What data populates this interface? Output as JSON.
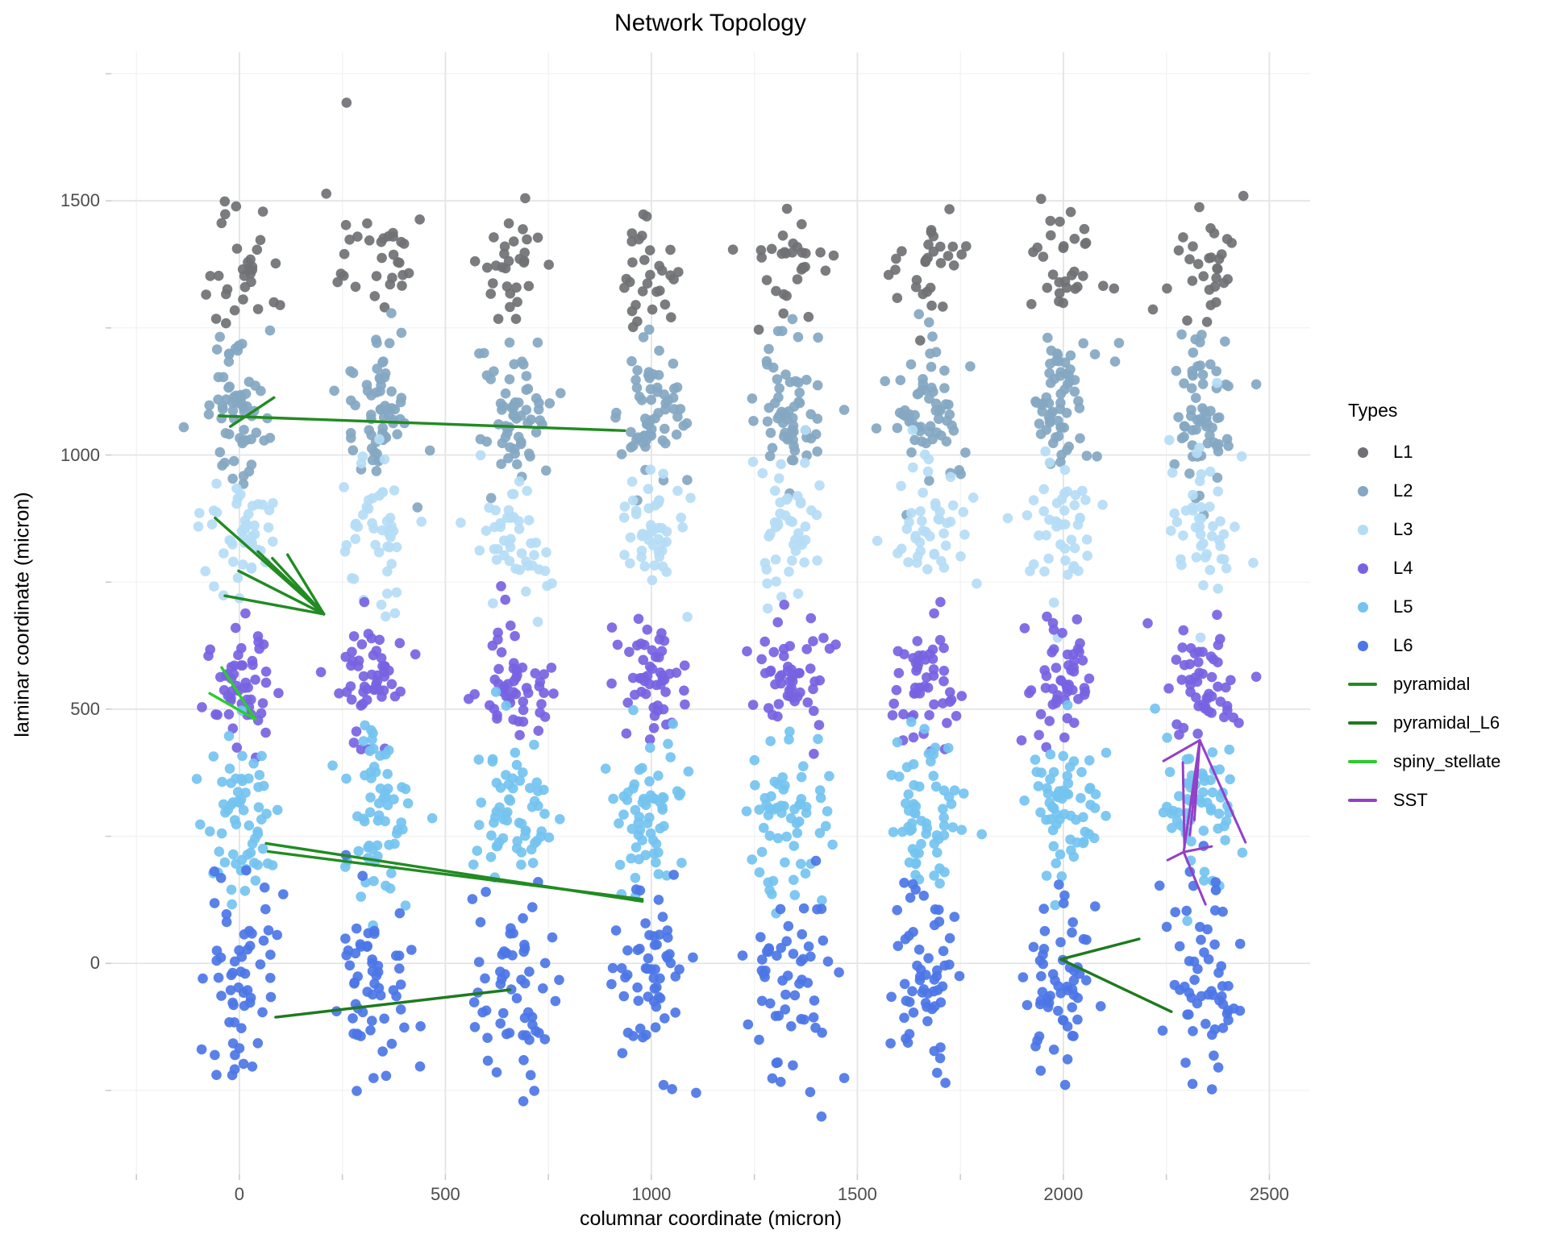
{
  "chart_data": {
    "type": "scatter",
    "title": "Network Topology",
    "xlabel": "columnar coordinate (micron)",
    "ylabel": "laminar coordinate (micron)",
    "xlim": [
      -311,
      2599
    ],
    "ylim": [
      -415,
      1792
    ],
    "grid": "on",
    "x_major_ticks": [
      0,
      500,
      1000,
      1500,
      2000,
      2500
    ],
    "y_major_ticks": [
      0,
      500,
      1000,
      1500
    ],
    "x_minor_ticks": [
      -250,
      250,
      750,
      1250,
      1750,
      2250
    ],
    "y_minor_ticks": [
      -250,
      250,
      750,
      1250,
      1750
    ],
    "column_centers": [
      0,
      333,
      667,
      1000,
      1333,
      1667,
      2000,
      2333
    ],
    "layers": [
      {
        "name": "L1",
        "color": "#6F7174",
        "y_mean": 1372,
        "y_sd": 62,
        "x_sd": 45,
        "n_per_column": 30
      },
      {
        "name": "L2",
        "color": "#84A7C2",
        "y_mean": 1098,
        "y_sd": 72,
        "x_sd": 45,
        "n_per_column": 62
      },
      {
        "name": "L3",
        "color": "#B5DCF5",
        "y_mean": 845,
        "y_sd": 68,
        "x_sd": 45,
        "n_per_column": 46
      },
      {
        "name": "L4",
        "color": "#7763E2",
        "y_mean": 556,
        "y_sd": 62,
        "x_sd": 45,
        "n_per_column": 52
      },
      {
        "name": "L5",
        "color": "#74C3F0",
        "y_mean": 300,
        "y_sd": 78,
        "x_sd": 45,
        "n_per_column": 62
      },
      {
        "name": "L6",
        "color": "#4C76E6",
        "y_mean": -40,
        "y_sd": 95,
        "x_sd": 48,
        "n_per_column": 58
      }
    ],
    "outlier_points": [
      {
        "layer": "L1",
        "x": 260,
        "y": 1693
      },
      {
        "layer": "L1",
        "x": 211,
        "y": 1514
      },
      {
        "layer": "L1",
        "x": -8,
        "y": 1489
      },
      {
        "layer": "L3",
        "x": 2373,
        "y": 1142
      }
    ],
    "edges": [
      {
        "name": "pyramidal",
        "color": "#228B22",
        "width": 3.4,
        "segments": [
          [
            -49,
            1077,
            935,
            1048
          ],
          [
            84,
            1113,
            -22,
            1056
          ],
          [
            205,
            687,
            -59,
            876
          ],
          [
            205,
            687,
            -2,
            772
          ],
          [
            205,
            687,
            -35,
            723
          ],
          [
            205,
            687,
            45,
            810
          ],
          [
            205,
            687,
            80,
            797
          ],
          [
            205,
            687,
            117,
            804
          ],
          [
            65,
            236,
            978,
            122
          ],
          [
            70,
            220,
            978,
            126
          ]
        ]
      },
      {
        "name": "pyramidal_L6",
        "color": "#1E7A1E",
        "width": 3.4,
        "segments": [
          [
            88,
            -106,
            657,
            -52
          ],
          [
            1994,
            8,
            2184,
            48
          ],
          [
            1994,
            8,
            2262,
            -95
          ]
        ]
      },
      {
        "name": "spiny_stellate",
        "color": "#2DCB2D",
        "width": 3.4,
        "segments": [
          [
            39,
            480,
            -43,
            582
          ],
          [
            39,
            480,
            -72,
            531
          ]
        ]
      },
      {
        "name": "SST",
        "color": "#9340C8",
        "width": 3.0,
        "segments": [
          [
            2331,
            439,
            2243,
            398
          ],
          [
            2331,
            439,
            2442,
            238
          ],
          [
            2331,
            439,
            2292,
            219
          ],
          [
            2331,
            439,
            2307,
            252
          ],
          [
            2331,
            439,
            2318,
            282
          ],
          [
            2290,
            395,
            2294,
            228
          ],
          [
            2292,
            219,
            2360,
            230
          ],
          [
            2292,
            219,
            2253,
            203
          ],
          [
            2292,
            219,
            2345,
            116
          ]
        ]
      }
    ],
    "legend": {
      "title": "Types",
      "point_items": [
        {
          "label": "L1",
          "color": "#6F7174"
        },
        {
          "label": "L2",
          "color": "#84A7C2"
        },
        {
          "label": "L3",
          "color": "#B5DCF5"
        },
        {
          "label": "L4",
          "color": "#7763E2"
        },
        {
          "label": "L5",
          "color": "#74C3F0"
        },
        {
          "label": "L6",
          "color": "#4C76E6"
        }
      ],
      "line_items": [
        {
          "label": "pyramidal",
          "color": "#228B22"
        },
        {
          "label": "pyramidal_L6",
          "color": "#1E7A1E"
        },
        {
          "label": "spiny_stellate",
          "color": "#2DCB2D"
        },
        {
          "label": "SST",
          "color": "#9340C8"
        }
      ]
    },
    "style": {
      "grid_major_color": "#E4E4E4",
      "grid_minor_color": "#F0F0F0",
      "tick_mark_color": "#C9C9C9",
      "point_radius": 6.3,
      "point_opacity": 0.92
    }
  }
}
